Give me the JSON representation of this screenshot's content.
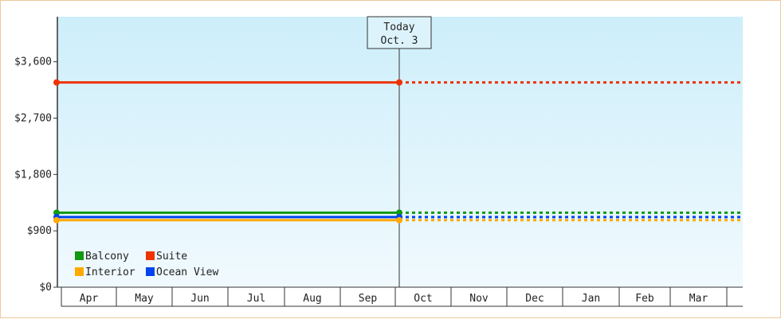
{
  "chart_data": {
    "type": "line",
    "title": "",
    "xlabel": "",
    "ylabel": "",
    "ylim": [
      0,
      4320
    ],
    "yticks": [
      {
        "value": 0,
        "label": "$0"
      },
      {
        "value": 900,
        "label": "$900"
      },
      {
        "value": 1800,
        "label": "$1,800"
      },
      {
        "value": 2700,
        "label": "$2,700"
      },
      {
        "value": 3600,
        "label": "$3,600"
      }
    ],
    "months": [
      "Apr",
      "May",
      "Jun",
      "Jul",
      "Aug",
      "Sep",
      "Oct",
      "Nov",
      "Dec",
      "Jan",
      "Feb",
      "Mar"
    ],
    "today": {
      "label_line1": "Today",
      "label_line2": "Oct. 3",
      "month_index": 6
    },
    "series": [
      {
        "name": "Suite",
        "color": "#ee3300",
        "value": 3270
      },
      {
        "name": "Balcony",
        "color": "#119911",
        "value": 1190
      },
      {
        "name": "Ocean View",
        "color": "#0044ee",
        "value": 1120
      },
      {
        "name": "Interior",
        "color": "#ffaa00",
        "value": 1070
      }
    ],
    "grid": false,
    "legend_position": "bottom-left"
  }
}
